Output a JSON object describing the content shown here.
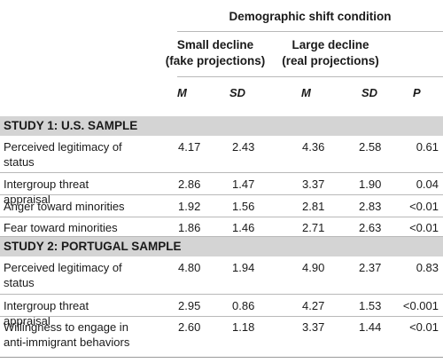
{
  "table": {
    "header": {
      "condition": "Demographic shift condition",
      "group1_line1": "Small decline",
      "group1_line2": "(fake projections)",
      "group2_line1": "Large decline",
      "group2_line2": "(real projections)",
      "col_m1": "M",
      "col_sd1": "SD",
      "col_m2": "M",
      "col_sd2": "SD",
      "col_p": "P"
    },
    "study1": {
      "title": "STUDY 1: U.S. SAMPLE",
      "rows": [
        {
          "label": "Perceived legitimacy of status",
          "m1": "4.17",
          "sd1": "2.43",
          "m2": "4.36",
          "sd2": "2.58",
          "p": "0.61"
        },
        {
          "label": "Intergroup threat appraisal",
          "m1": "2.86",
          "sd1": "1.47",
          "m2": "3.37",
          "sd2": "1.90",
          "p": "0.04"
        },
        {
          "label": "Anger toward minorities",
          "m1": "1.92",
          "sd1": "1.56",
          "m2": "2.81",
          "sd2": "2.83",
          "p": "<0.01"
        },
        {
          "label": "Fear toward minorities",
          "m1": "1.86",
          "sd1": "1.46",
          "m2": "2.71",
          "sd2": "2.63",
          "p": "<0.01"
        }
      ]
    },
    "study2": {
      "title": "STUDY 2: PORTUGAL SAMPLE",
      "rows": [
        {
          "label": "Perceived legitimacy of status",
          "m1": "4.80",
          "sd1": "1.94",
          "m2": "4.90",
          "sd2": "2.37",
          "p": "0.83"
        },
        {
          "label": "Intergroup threat appraisal",
          "m1": "2.95",
          "sd1": "0.86",
          "m2": "4.27",
          "sd2": "1.53",
          "p": "<0.001"
        },
        {
          "label": "Willingness to engage in anti-immigrant behaviors",
          "m1": "2.60",
          "sd1": "1.18",
          "m2": "3.37",
          "sd2": "1.44",
          "p": "<0.01"
        }
      ]
    }
  }
}
